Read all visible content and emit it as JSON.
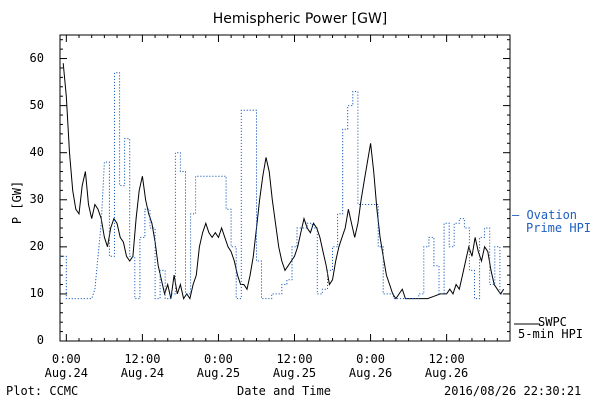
{
  "chart_data": {
    "type": "line",
    "title": "Hemispheric Power [GW]",
    "xlabel": "Date and Time",
    "ylabel": "P [GW]",
    "ylim": [
      0,
      65
    ],
    "xlim_hours": [
      -1,
      70
    ],
    "yticks": [
      0,
      10,
      20,
      30,
      40,
      50,
      60
    ],
    "xticks": [
      {
        "hour": 0,
        "time": "0:00",
        "date": "Aug.24"
      },
      {
        "hour": 12,
        "time": "12:00",
        "date": "Aug.24"
      },
      {
        "hour": 24,
        "time": "0:00",
        "date": "Aug.25"
      },
      {
        "hour": 36,
        "time": "12:00",
        "date": "Aug.25"
      },
      {
        "hour": 48,
        "time": "0:00",
        "date": "Aug.26"
      },
      {
        "hour": 60,
        "time": "12:00",
        "date": "Aug.26"
      }
    ],
    "series": [
      {
        "name": "SWPC 5-min HPI",
        "label_lines": [
          "SWPC",
          "5-min HPI"
        ],
        "color": "#000000",
        "style": "solid",
        "points": [
          [
            -0.5,
            59
          ],
          [
            0,
            52
          ],
          [
            0.5,
            40
          ],
          [
            1,
            32
          ],
          [
            1.5,
            28
          ],
          [
            2,
            27
          ],
          [
            2.5,
            33
          ],
          [
            3,
            36
          ],
          [
            3.5,
            29
          ],
          [
            4,
            26
          ],
          [
            4.5,
            29
          ],
          [
            5,
            28
          ],
          [
            5.5,
            26
          ],
          [
            6,
            22
          ],
          [
            6.5,
            20
          ],
          [
            7,
            24
          ],
          [
            7.5,
            26
          ],
          [
            8,
            25
          ],
          [
            8.5,
            22
          ],
          [
            9,
            21
          ],
          [
            9.5,
            18
          ],
          [
            10,
            17
          ],
          [
            10.5,
            18
          ],
          [
            11,
            26
          ],
          [
            11.5,
            32
          ],
          [
            12,
            35
          ],
          [
            12.5,
            30
          ],
          [
            13,
            27
          ],
          [
            13.5,
            25
          ],
          [
            14,
            21
          ],
          [
            14.5,
            16
          ],
          [
            15,
            13
          ],
          [
            15.5,
            10
          ],
          [
            16,
            12
          ],
          [
            16.5,
            9
          ],
          [
            17,
            14
          ],
          [
            17.5,
            10
          ],
          [
            18,
            12
          ],
          [
            18.5,
            9
          ],
          [
            19,
            10
          ],
          [
            19.5,
            9
          ],
          [
            20,
            12
          ],
          [
            20.5,
            14
          ],
          [
            21,
            20
          ],
          [
            21.5,
            23
          ],
          [
            22,
            25
          ],
          [
            22.5,
            23
          ],
          [
            23,
            22
          ],
          [
            23.5,
            23
          ],
          [
            24,
            22
          ],
          [
            24.5,
            24
          ],
          [
            25,
            22
          ],
          [
            25.5,
            20
          ],
          [
            26,
            19
          ],
          [
            26.5,
            17
          ],
          [
            27,
            14
          ],
          [
            27.5,
            12
          ],
          [
            28,
            12
          ],
          [
            28.5,
            11
          ],
          [
            29,
            14
          ],
          [
            29.5,
            18
          ],
          [
            30,
            24
          ],
          [
            30.5,
            30
          ],
          [
            31,
            35
          ],
          [
            31.5,
            39
          ],
          [
            32,
            36
          ],
          [
            32.5,
            30
          ],
          [
            33,
            25
          ],
          [
            33.5,
            20
          ],
          [
            34,
            17
          ],
          [
            34.5,
            15
          ],
          [
            35,
            16
          ],
          [
            35.5,
            17
          ],
          [
            36,
            18
          ],
          [
            36.5,
            20
          ],
          [
            37,
            23
          ],
          [
            37.5,
            26
          ],
          [
            38,
            24
          ],
          [
            38.5,
            23
          ],
          [
            39,
            25
          ],
          [
            39.5,
            24
          ],
          [
            40,
            22
          ],
          [
            40.5,
            19
          ],
          [
            41,
            16
          ],
          [
            41.5,
            12
          ],
          [
            42,
            13
          ],
          [
            42.5,
            17
          ],
          [
            43,
            20
          ],
          [
            43.5,
            22
          ],
          [
            44,
            24
          ],
          [
            44.5,
            28
          ],
          [
            45,
            25
          ],
          [
            45.5,
            22
          ],
          [
            46,
            25
          ],
          [
            46.5,
            30
          ],
          [
            47,
            34
          ],
          [
            47.5,
            38
          ],
          [
            48,
            42
          ],
          [
            48.5,
            36
          ],
          [
            49,
            28
          ],
          [
            49.5,
            22
          ],
          [
            50,
            18
          ],
          [
            50.5,
            14
          ],
          [
            51,
            12
          ],
          [
            51.5,
            10
          ],
          [
            52,
            9
          ],
          [
            52.5,
            10
          ],
          [
            53,
            11
          ],
          [
            53.5,
            9
          ],
          [
            54,
            9
          ],
          [
            55,
            9
          ],
          [
            56,
            9
          ],
          [
            57,
            9
          ],
          [
            58,
            9.5
          ],
          [
            59,
            10
          ],
          [
            60,
            10
          ],
          [
            60.5,
            11
          ],
          [
            61,
            10
          ],
          [
            61.5,
            12
          ],
          [
            62,
            11
          ],
          [
            62.5,
            14
          ],
          [
            63,
            17
          ],
          [
            63.5,
            20
          ],
          [
            64,
            18
          ],
          [
            64.5,
            22
          ],
          [
            65,
            19
          ],
          [
            65.5,
            17
          ],
          [
            66,
            20
          ],
          [
            66.5,
            19
          ],
          [
            67,
            15
          ],
          [
            67.5,
            12
          ],
          [
            68,
            11
          ],
          [
            68.5,
            10
          ],
          [
            69,
            11
          ]
        ]
      },
      {
        "name": "Ovation Prime HPI",
        "label_lines": [
          "— Ovation",
          "Prime HPI"
        ],
        "color": "#1f5fbf",
        "style": "dotted",
        "points": [
          [
            -1,
            18
          ],
          [
            0,
            18
          ],
          [
            0,
            9
          ],
          [
            1,
            9
          ],
          [
            2,
            9
          ],
          [
            3,
            9
          ],
          [
            4,
            9
          ],
          [
            4.5,
            11
          ],
          [
            5,
            18
          ],
          [
            5.5,
            25
          ],
          [
            6,
            38
          ],
          [
            6.8,
            38
          ],
          [
            6.8,
            18
          ],
          [
            7.6,
            18
          ],
          [
            7.6,
            57
          ],
          [
            8.4,
            57
          ],
          [
            8.4,
            33
          ],
          [
            9.2,
            33
          ],
          [
            9.2,
            43
          ],
          [
            10,
            43
          ],
          [
            10,
            18
          ],
          [
            10.8,
            18
          ],
          [
            10.8,
            9
          ],
          [
            11.6,
            9
          ],
          [
            11.6,
            22
          ],
          [
            12.4,
            22
          ],
          [
            12.4,
            28
          ],
          [
            13.2,
            28
          ],
          [
            13.2,
            24
          ],
          [
            14,
            24
          ],
          [
            14,
            9
          ],
          [
            14.8,
            9
          ],
          [
            14.8,
            15
          ],
          [
            15.6,
            15
          ],
          [
            15.6,
            9
          ],
          [
            16.4,
            9
          ],
          [
            16.4,
            10
          ],
          [
            17.2,
            10
          ],
          [
            17.2,
            40
          ],
          [
            18,
            40
          ],
          [
            18,
            36
          ],
          [
            18.8,
            36
          ],
          [
            18.8,
            10
          ],
          [
            19.6,
            10
          ],
          [
            19.6,
            27
          ],
          [
            20.4,
            27
          ],
          [
            20.4,
            35
          ],
          [
            21.2,
            35
          ],
          [
            22,
            35
          ],
          [
            22.8,
            35
          ],
          [
            23.6,
            35
          ],
          [
            24.4,
            35
          ],
          [
            25.2,
            35
          ],
          [
            25.2,
            28
          ],
          [
            26,
            28
          ],
          [
            26,
            20
          ],
          [
            26.8,
            20
          ],
          [
            26.8,
            9
          ],
          [
            27.6,
            9
          ],
          [
            27.6,
            49
          ],
          [
            28.4,
            49
          ],
          [
            29.2,
            49
          ],
          [
            29.2,
            49
          ],
          [
            30,
            49
          ],
          [
            30,
            17
          ],
          [
            30.8,
            17
          ],
          [
            30.8,
            9
          ],
          [
            31.6,
            9
          ],
          [
            31.6,
            9
          ],
          [
            32.4,
            9
          ],
          [
            32.4,
            10
          ],
          [
            33.2,
            10
          ],
          [
            33.2,
            10
          ],
          [
            34,
            10
          ],
          [
            34,
            12
          ],
          [
            34.8,
            12
          ],
          [
            34.8,
            13
          ],
          [
            35.6,
            13
          ],
          [
            35.6,
            20
          ],
          [
            36.4,
            20
          ],
          [
            36.4,
            24
          ],
          [
            37.2,
            24
          ],
          [
            37.2,
            24
          ],
          [
            38,
            24
          ],
          [
            38,
            25
          ],
          [
            38.8,
            25
          ],
          [
            38.8,
            24
          ],
          [
            39.6,
            24
          ],
          [
            39.6,
            10
          ],
          [
            40.4,
            10
          ],
          [
            40.4,
            11
          ],
          [
            41.2,
            11
          ],
          [
            41.2,
            15
          ],
          [
            42,
            15
          ],
          [
            42,
            20
          ],
          [
            42.8,
            20
          ],
          [
            42.8,
            27
          ],
          [
            43.6,
            27
          ],
          [
            43.6,
            45
          ],
          [
            44.4,
            45
          ],
          [
            44.4,
            50
          ],
          [
            45.2,
            50
          ],
          [
            45.2,
            53
          ],
          [
            46,
            53
          ],
          [
            46,
            29
          ],
          [
            46.8,
            29
          ],
          [
            46.8,
            29
          ],
          [
            47.6,
            29
          ],
          [
            48.4,
            29
          ],
          [
            49.2,
            29
          ],
          [
            49.2,
            20
          ],
          [
            50,
            20
          ],
          [
            50,
            10
          ],
          [
            50.8,
            10
          ],
          [
            50.8,
            10
          ],
          [
            51.6,
            10
          ],
          [
            51.6,
            9
          ],
          [
            52.4,
            9
          ],
          [
            53.2,
            9
          ],
          [
            54,
            9
          ],
          [
            54.8,
            9
          ],
          [
            55.6,
            9
          ],
          [
            55.6,
            10
          ],
          [
            56.4,
            10
          ],
          [
            56.4,
            20
          ],
          [
            57.2,
            20
          ],
          [
            57.2,
            22
          ],
          [
            58,
            22
          ],
          [
            58,
            16
          ],
          [
            58.8,
            16
          ],
          [
            58.8,
            10
          ],
          [
            59.6,
            10
          ],
          [
            59.6,
            25
          ],
          [
            60.4,
            25
          ],
          [
            60.4,
            20
          ],
          [
            61.2,
            20
          ],
          [
            61.2,
            25
          ],
          [
            62,
            25
          ],
          [
            62,
            26
          ],
          [
            62.8,
            26
          ],
          [
            62.8,
            24
          ],
          [
            63.6,
            24
          ],
          [
            63.6,
            15
          ],
          [
            64.4,
            15
          ],
          [
            64.4,
            9
          ],
          [
            65.2,
            9
          ],
          [
            65.2,
            22
          ],
          [
            66,
            22
          ],
          [
            66,
            24
          ],
          [
            66.8,
            24
          ],
          [
            66.8,
            12
          ],
          [
            67.6,
            12
          ],
          [
            67.6,
            20
          ],
          [
            68.4,
            20
          ],
          [
            68.4,
            10
          ],
          [
            69,
            10
          ]
        ]
      }
    ],
    "legend_placement": "right"
  },
  "footer": {
    "plot_credit": "Plot: CCMC",
    "timestamp": "2016/08/26 22:30:21"
  }
}
